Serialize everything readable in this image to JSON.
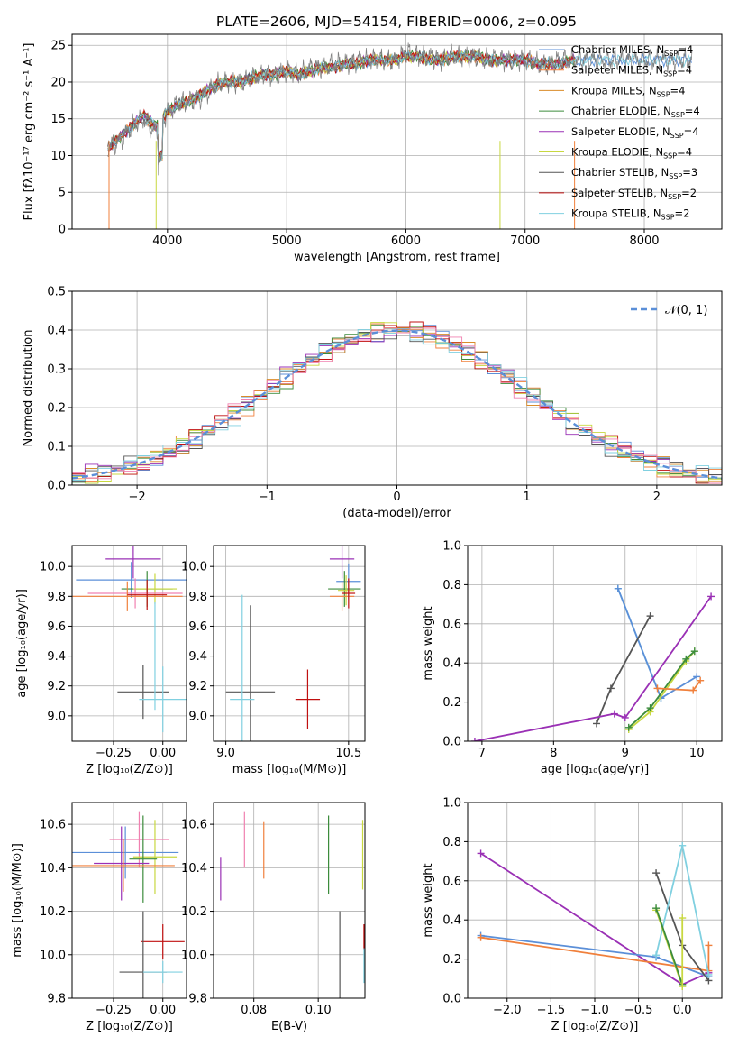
{
  "title": "PLATE=2606, MJD=54154, FIBERID=0006, z=0.095",
  "colors": {
    "Chabrier MILES": "#5b8fd8",
    "Salpeter MILES": "#f0803c",
    "Kroupa MILES": "#d98c2a",
    "Chabrier ELODIE": "#3c8c3c",
    "Salpeter ELODIE": "#9a30b5",
    "Kroupa ELODIE": "#c8d840",
    "Chabrier STELIB": "#555555",
    "Salpeter STELIB": "#c01010",
    "Kroupa STELIB": "#80d0e0",
    "data": "#7f7f7f",
    "normal": "#5b8fd8",
    "pink": "#f080b0"
  },
  "chart_data": [
    {
      "id": "spectrum",
      "type": "line",
      "title": "PLATE=2606, MJD=54154, FIBERID=0006, z=0.095",
      "xlabel": "wavelength [Angstrom, rest frame]",
      "ylabel": "Flux [fλ10⁻¹⁷ erg cm⁻² s⁻¹ A⁻¹]",
      "xlim": [
        3200,
        8650
      ],
      "ylim": [
        0,
        26.5
      ],
      "xticks": [
        4000,
        5000,
        6000,
        7000,
        8000
      ],
      "yticks": [
        0,
        5,
        10,
        15,
        20,
        25
      ],
      "x": [
        3500,
        3600,
        3700,
        3800,
        3900,
        4000,
        4100,
        4200,
        4300,
        4400,
        4500,
        4600,
        4700,
        4800,
        4900,
        5000,
        5100,
        5200,
        5300,
        5400,
        5500,
        5600,
        5700,
        5800,
        5900,
        6000,
        6100,
        6200,
        6300,
        6400,
        6500,
        6600,
        6700,
        6800,
        6900,
        7000,
        7100,
        7200,
        7300,
        7400,
        7500,
        7600,
        7700,
        7800,
        7900,
        8000,
        8100,
        8200,
        8300,
        8400
      ],
      "data_values": [
        11,
        12,
        14,
        15,
        13,
        16,
        17,
        17.5,
        18,
        19.5,
        20,
        20,
        20.5,
        21,
        21,
        21.5,
        21,
        22,
        22,
        22.5,
        22.5,
        23,
        23,
        23,
        23,
        24,
        23.5,
        23.5,
        23,
        23.5,
        23.5,
        23.5,
        23,
        23,
        23,
        23,
        22.5,
        22.5,
        23,
        23,
        23,
        23,
        23,
        23,
        23,
        23,
        23,
        23,
        23,
        23
      ],
      "model_values": [
        11,
        12.5,
        14,
        15.5,
        14,
        16,
        17,
        17.5,
        18.5,
        19.5,
        20,
        20,
        20.5,
        21,
        21,
        21.5,
        21,
        21.5,
        22,
        22,
        22.5,
        22.5,
        23,
        23,
        23,
        23.5,
        23.5,
        23,
        23,
        23.5,
        23.5,
        23.5,
        23,
        23,
        23,
        23,
        22.5,
        22.5,
        22.5,
        23,
        23,
        23,
        23,
        23,
        23,
        23,
        23,
        23,
        23,
        23
      ],
      "legend_position": "right",
      "series": [
        {
          "name": "Chabrier MILES, N",
          "sub": "SSP",
          "tail": "=4"
        },
        {
          "name": "Salpeter MILES, N",
          "sub": "SSP",
          "tail": "=4"
        },
        {
          "name": "Kroupa MILES, N",
          "sub": "SSP",
          "tail": "=4"
        },
        {
          "name": "Chabrier ELODIE, N",
          "sub": "SSP",
          "tail": "=4"
        },
        {
          "name": "Salpeter ELODIE, N",
          "sub": "SSP",
          "tail": "=4"
        },
        {
          "name": "Kroupa ELODIE, N",
          "sub": "SSP",
          "tail": "=4"
        },
        {
          "name": "Chabrier STELIB, N",
          "sub": "SSP",
          "tail": "=3"
        },
        {
          "name": "Salpeter STELIB, N",
          "sub": "SSP",
          "tail": "=2"
        },
        {
          "name": "Kroupa STELIB, N",
          "sub": "SSP",
          "tail": "=2"
        }
      ]
    },
    {
      "id": "residuals",
      "type": "line",
      "xlabel": "(data-model)/error",
      "ylabel": "Normed distribution",
      "xlim": [
        -2.5,
        2.5
      ],
      "ylim": [
        0,
        0.5
      ],
      "xticks": [
        -2,
        -1,
        0,
        1,
        2
      ],
      "yticks": [
        0.0,
        0.1,
        0.2,
        0.3,
        0.4,
        0.5
      ],
      "bin_width": 0.1,
      "normal_label": "𝒩(0, 1)",
      "grid": true
    },
    {
      "id": "age-vs-Z",
      "type": "scatter",
      "xlabel": "Z [log₁₀(Z/Z⊙)]",
      "ylabel": "age  [log₁₀(age/yr)]",
      "xlim": [
        -0.46,
        0.12
      ],
      "ylim": [
        8.83,
        10.14
      ],
      "xticks": [
        -0.25,
        0.0
      ],
      "yticks": [
        9.0,
        9.2,
        9.4,
        9.6,
        9.8,
        10.0
      ],
      "points": [
        {
          "s": "Salpeter ELODIE",
          "x": -0.15,
          "y": 10.05,
          "xerr": 0.14,
          "yerr": 0.13
        },
        {
          "s": "Chabrier MILES",
          "x": -0.16,
          "y": 9.91,
          "xerr": 0.28,
          "yerr": 0.12
        },
        {
          "s": "Chabrier ELODIE",
          "x": -0.08,
          "y": 9.85,
          "xerr": 0.13,
          "yerr": 0.12
        },
        {
          "s": "Kroupa ELODIE",
          "x": -0.04,
          "y": 9.85,
          "xerr": 0.11,
          "yerr": 0.1
        },
        {
          "s": "pink",
          "x": -0.14,
          "y": 9.82,
          "xerr": 0.24,
          "yerr": 0.1
        },
        {
          "s": "Salpeter MILES",
          "x": -0.18,
          "y": 9.8,
          "xerr": 0.28,
          "yerr": 0.1
        },
        {
          "s": "Salpeter STELIB",
          "x": -0.08,
          "y": 9.81,
          "xerr": 0.1,
          "yerr": 0.1
        },
        {
          "s": "Chabrier STELIB",
          "x": -0.1,
          "y": 9.16,
          "xerr": 0.13,
          "yerr": 0.18
        },
        {
          "s": "Kroupa STELIB",
          "x": 0.0,
          "y": 9.11,
          "xerr": 0.12,
          "yerr": 0.22
        },
        {
          "s": "Kroupa STELIB",
          "x": -0.04,
          "y": 9.4,
          "xerr": 0.0,
          "yerr": 0.36
        }
      ]
    },
    {
      "id": "age-vs-mass",
      "type": "scatter",
      "xlabel": "mass [log₁₀(M/M⊙)]",
      "xlim": [
        8.85,
        10.7
      ],
      "ylim": [
        8.83,
        10.14
      ],
      "xticks": [
        9.0,
        10.5
      ],
      "yticks": [
        9.0,
        9.2,
        9.4,
        9.6,
        9.8,
        10.0
      ],
      "points": [
        {
          "s": "Salpeter ELODIE",
          "x": 10.42,
          "y": 10.05,
          "xerr": 0.15,
          "yerr": 0.13
        },
        {
          "s": "Chabrier MILES",
          "x": 10.5,
          "y": 9.9,
          "xerr": 0.15,
          "yerr": 0.12
        },
        {
          "s": "Chabrier ELODIE",
          "x": 10.45,
          "y": 9.85,
          "xerr": 0.2,
          "yerr": 0.12
        },
        {
          "s": "Kroupa ELODIE",
          "x": 10.47,
          "y": 9.84,
          "xerr": 0.1,
          "yerr": 0.1
        },
        {
          "s": "Salpeter MILES",
          "x": 10.42,
          "y": 9.8,
          "xerr": 0.15,
          "yerr": 0.1
        },
        {
          "s": "Salpeter STELIB",
          "x": 10.5,
          "y": 9.82,
          "xerr": 0.08,
          "yerr": 0.1
        },
        {
          "s": "Chabrier STELIB",
          "x": 9.3,
          "y": 9.16,
          "xerr": 0.3,
          "yerr": 0.58
        },
        {
          "s": "Salpeter STELIB",
          "x": 10.0,
          "y": 9.11,
          "xerr": 0.15,
          "yerr": 0.2
        },
        {
          "s": "Kroupa STELIB",
          "x": 9.2,
          "y": 9.11,
          "xerr": 0.15,
          "yerr": 0.7
        }
      ]
    },
    {
      "id": "mw-vs-age",
      "type": "line",
      "xlabel": "age  [log₁₀(age/yr)]",
      "ylabel": "mass weight",
      "xlim": [
        6.8,
        10.35
      ],
      "ylim": [
        0,
        1
      ],
      "xticks": [
        7,
        8,
        9,
        10
      ],
      "yticks": [
        0.0,
        0.2,
        0.4,
        0.6,
        0.8,
        1.0
      ],
      "series": [
        {
          "s": "Kroupa STELIB",
          "x": [
            8.9,
            9.5
          ],
          "y": [
            0.78,
            0.22
          ]
        },
        {
          "s": "Chabrier MILES",
          "x": [
            8.9,
            9.5,
            10.0
          ],
          "y": [
            0.78,
            0.22,
            0.33
          ]
        },
        {
          "s": "Chabrier STELIB",
          "x": [
            8.6,
            8.8,
            9.35
          ],
          "y": [
            0.09,
            0.27,
            0.64
          ]
        },
        {
          "s": "Salpeter ELODIE",
          "x": [
            6.9,
            8.85,
            9.0,
            10.2
          ],
          "y": [
            0.0,
            0.14,
            0.12,
            0.74
          ]
        },
        {
          "s": "Kroupa ELODIE",
          "x": [
            9.05,
            9.35,
            9.85,
            9.97
          ],
          "y": [
            0.06,
            0.15,
            0.41,
            0.46
          ]
        },
        {
          "s": "Chabrier ELODIE",
          "x": [
            9.05,
            9.35,
            9.85,
            9.97
          ],
          "y": [
            0.07,
            0.17,
            0.42,
            0.46
          ]
        },
        {
          "s": "Salpeter MILES",
          "x": [
            9.45,
            9.95,
            10.05
          ],
          "y": [
            0.27,
            0.26,
            0.31
          ]
        }
      ]
    },
    {
      "id": "mass-vs-Z",
      "type": "scatter",
      "xlabel": "Z [log₁₀(Z/Z⊙)]",
      "ylabel": "mass [log₁₀(M/M⊙)]",
      "xlim": [
        -0.46,
        0.12
      ],
      "ylim": [
        9.8,
        10.7
      ],
      "xticks": [
        -0.25,
        0.0
      ],
      "yticks": [
        9.8,
        10.0,
        10.2,
        10.4,
        10.6
      ],
      "points": [
        {
          "s": "pink",
          "x": -0.12,
          "y": 10.53,
          "xerr": 0.15,
          "yerr": 0.13
        },
        {
          "s": "Chabrier MILES",
          "x": -0.19,
          "y": 10.47,
          "xerr": 0.27,
          "yerr": 0.12
        },
        {
          "s": "Kroupa ELODIE",
          "x": -0.04,
          "y": 10.45,
          "xerr": 0.11,
          "yerr": 0.17
        },
        {
          "s": "Chabrier ELODIE",
          "x": -0.1,
          "y": 10.44,
          "xerr": 0.07,
          "yerr": 0.2
        },
        {
          "s": "Salpeter ELODIE",
          "x": -0.21,
          "y": 10.42,
          "xerr": 0.14,
          "yerr": 0.17
        },
        {
          "s": "Salpeter MILES",
          "x": -0.2,
          "y": 10.41,
          "xerr": 0.26,
          "yerr": 0.12
        },
        {
          "s": "Salpeter STELIB",
          "x": 0.0,
          "y": 10.06,
          "xerr": 0.11,
          "yerr": 0.08
        },
        {
          "s": "Chabrier STELIB",
          "x": -0.1,
          "y": 9.92,
          "xerr": 0.12,
          "yerr": 0.28
        },
        {
          "s": "Kroupa STELIB",
          "x": 0.0,
          "y": 9.92,
          "xerr": 0.1,
          "yerr": 0.05
        }
      ]
    },
    {
      "id": "mass-vs-EBV",
      "type": "scatter",
      "xlabel": "E(B-V)",
      "xlim": [
        0.0675,
        0.1145
      ],
      "ylim": [
        9.8,
        10.7
      ],
      "xticks": [
        0.08,
        0.1
      ],
      "yticks": [
        9.8,
        10.0,
        10.2,
        10.4,
        10.6
      ],
      "points": [
        {
          "s": "Salpeter ELODIE",
          "x": 0.0697,
          "y": 10.35,
          "xerr": 0,
          "yerr": 0.1
        },
        {
          "s": "pink",
          "x": 0.0771,
          "y": 10.53,
          "xerr": 0,
          "yerr": 0.13
        },
        {
          "s": "Salpeter MILES",
          "x": 0.0831,
          "y": 10.48,
          "xerr": 0,
          "yerr": 0.13
        },
        {
          "s": "Chabrier ELODIE",
          "x": 0.1032,
          "y": 10.46,
          "xerr": 0,
          "yerr": 0.18
        },
        {
          "s": "Chabrier STELIB",
          "x": 0.1067,
          "y": 9.96,
          "xerr": 0,
          "yerr": 0.24
        },
        {
          "s": "Kroupa ELODIE",
          "x": 0.1138,
          "y": 10.46,
          "xerr": 0,
          "yerr": 0.16
        },
        {
          "s": "Salpeter STELIB",
          "x": 0.1142,
          "y": 10.08,
          "xerr": 0,
          "yerr": 0.06
        },
        {
          "s": "Kroupa STELIB",
          "x": 0.1142,
          "y": 9.95,
          "xerr": 0,
          "yerr": 0.08
        }
      ]
    },
    {
      "id": "mw-vs-Z",
      "type": "line",
      "xlabel": "Z [log₁₀(Z/Z⊙)]",
      "ylabel": "mass weight",
      "xlim": [
        -2.45,
        0.45
      ],
      "ylim": [
        0,
        1
      ],
      "xticks": [
        -2.0,
        -1.5,
        -1.0,
        -0.5,
        0.0
      ],
      "yticks": [
        0.0,
        0.2,
        0.4,
        0.6,
        0.8,
        1.0
      ],
      "series": [
        {
          "s": "Salpeter ELODIE",
          "x": [
            -2.3,
            0.0,
            0.3
          ],
          "y": [
            0.74,
            0.07,
            0.13
          ]
        },
        {
          "s": "Chabrier MILES",
          "x": [
            -2.3,
            -0.3,
            0.3
          ],
          "y": [
            0.32,
            0.21,
            0.11
          ]
        },
        {
          "s": "Salpeter MILES",
          "x": [
            -2.3,
            0.3,
            0.3
          ],
          "y": [
            0.31,
            0.14,
            0.27
          ]
        },
        {
          "s": "Chabrier STELIB",
          "x": [
            -0.3,
            0.0,
            0.3
          ],
          "y": [
            0.64,
            0.27,
            0.09
          ]
        },
        {
          "s": "Kroupa STELIB",
          "x": [
            -0.3,
            0.0,
            0.3
          ],
          "y": [
            0.22,
            0.78,
            0.12
          ]
        },
        {
          "s": "Kroupa ELODIE",
          "x": [
            -0.3,
            0.0
          ],
          "y": [
            0.45,
            0.06
          ]
        },
        {
          "s": "Chabrier ELODIE",
          "x": [
            -0.3,
            0.0
          ],
          "y": [
            0.46,
            0.07
          ]
        },
        {
          "s": "Kroupa ELODIE",
          "x": [
            0.0,
            0.0
          ],
          "y": [
            0.41,
            0.06
          ]
        }
      ]
    }
  ]
}
